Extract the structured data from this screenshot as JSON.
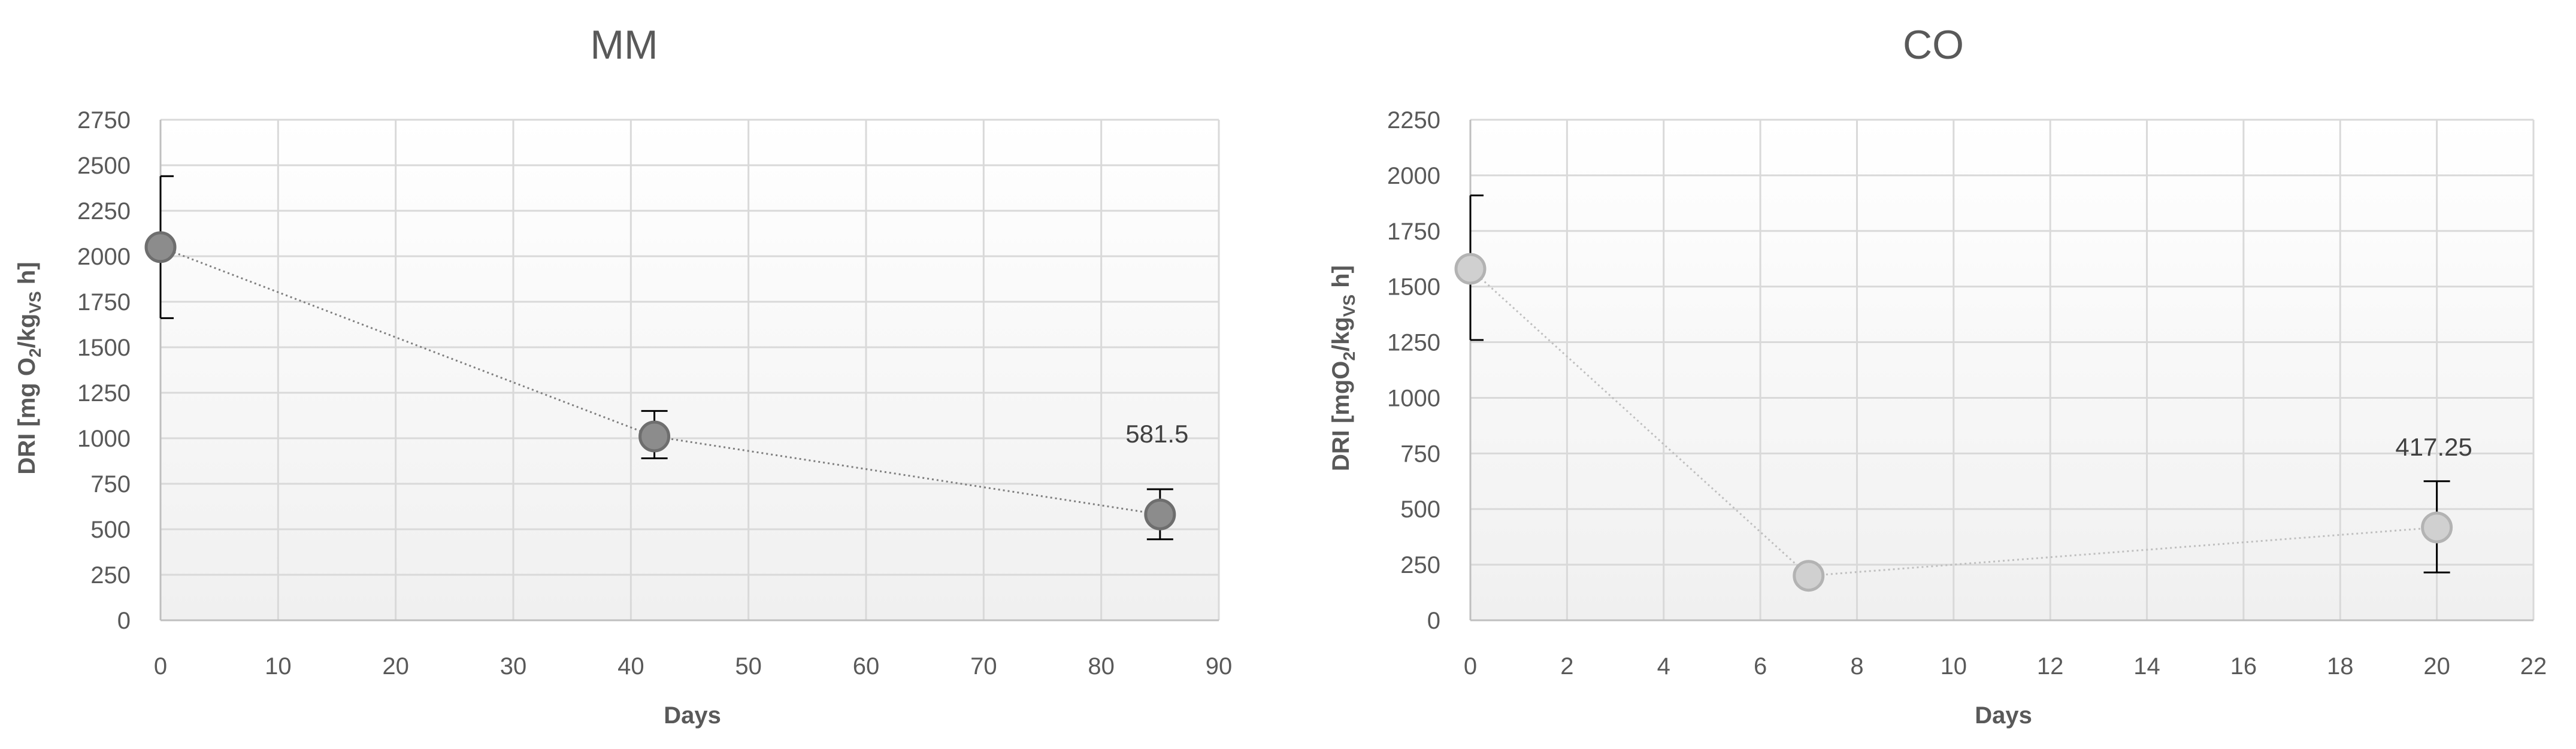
{
  "chart_data": [
    {
      "type": "scatter",
      "title": "MM",
      "xlabel": "Days",
      "ylabel_parts": [
        "DRI [mg O",
        "2",
        "/kg",
        "VS",
        " h]"
      ],
      "xlim": [
        0,
        90
      ],
      "ylim": [
        0,
        2750
      ],
      "xticks": [
        0,
        10,
        20,
        30,
        40,
        50,
        60,
        70,
        80,
        90
      ],
      "yticks": [
        0,
        250,
        500,
        750,
        1000,
        1250,
        1500,
        1750,
        2000,
        2250,
        2500,
        2750
      ],
      "grid": true,
      "marker_color": "#8c8c8c",
      "marker_edge": "#6e6e6e",
      "line_color": "#7f7f7f",
      "series": [
        {
          "x": [
            0,
            42,
            85
          ],
          "y": [
            2050,
            1010,
            581.5
          ],
          "err_low": [
            1660,
            890,
            445
          ],
          "err_high": [
            2440,
            1150,
            720
          ]
        }
      ],
      "annotations": [
        {
          "text": "581.5",
          "x": 85,
          "y": 581.5
        }
      ]
    },
    {
      "type": "scatter",
      "title": "CO",
      "xlabel": "Days",
      "ylabel_parts": [
        "DRI [mgO",
        "2",
        "/kg",
        "VS",
        " h]"
      ],
      "xlim": [
        0,
        22
      ],
      "ylim": [
        0,
        2250
      ],
      "xticks": [
        0,
        2,
        4,
        6,
        8,
        10,
        12,
        14,
        16,
        18,
        20,
        22
      ],
      "yticks": [
        0,
        250,
        500,
        750,
        1000,
        1250,
        1500,
        1750,
        2000,
        2250
      ],
      "grid": true,
      "marker_color": "#d0d0d0",
      "marker_edge": "#b3b3b3",
      "line_color": "#bfbfbf",
      "series": [
        {
          "x": [
            0,
            7,
            20
          ],
          "y": [
            1580,
            200,
            417.25
          ],
          "err_low": [
            1260,
            200,
            215
          ],
          "err_high": [
            1910,
            200,
            625
          ]
        }
      ],
      "annotations": [
        {
          "text": "417.25",
          "x": 20,
          "y": 417.25
        }
      ]
    }
  ]
}
